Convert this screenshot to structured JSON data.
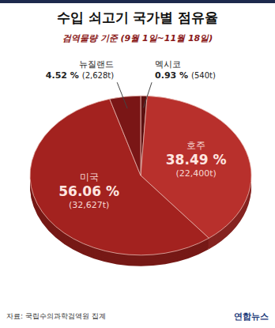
{
  "chart_data": {
    "type": "pie",
    "title": "수입 쇠고기 국가별 점유율",
    "subtitle": "검역물량 기준 (9월 1일~11월 18일)",
    "categories": [
      "멕시코",
      "호주",
      "미국",
      "뉴질랜드"
    ],
    "values": [
      0.93,
      38.49,
      56.06,
      4.52
    ],
    "value_labels": [
      "0.93 %",
      "38.49 %",
      "56.06 %",
      "4.52 %"
    ],
    "tonnage_labels": [
      "(540t)",
      "(22,400t)",
      "(32,627t)",
      "(2,628t)"
    ],
    "colors": [
      "#5c1010",
      "#b8302c",
      "#a3221f",
      "#7a1616"
    ],
    "data_labels": true,
    "source": "자료: 국립수의과학검역원 집계",
    "credit": "연합뉴스"
  }
}
